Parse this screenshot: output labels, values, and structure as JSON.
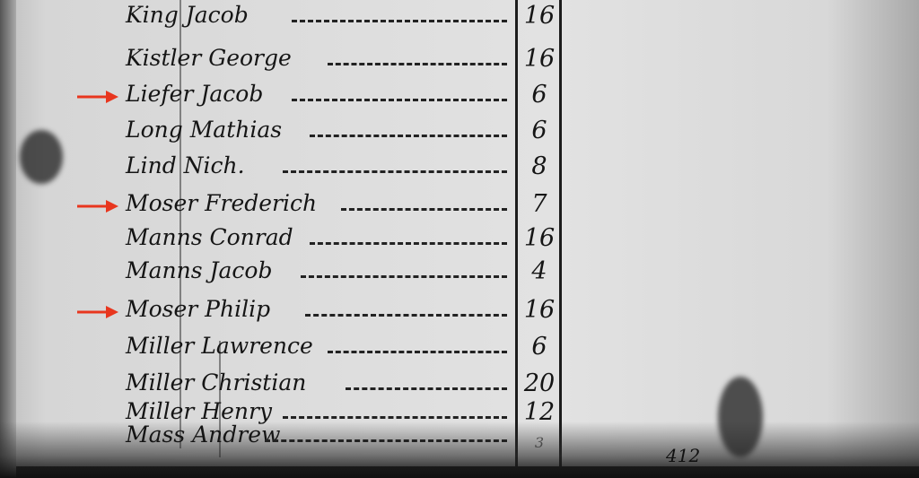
{
  "document": {
    "entries": [
      {
        "name": "King Jacob",
        "value": "16",
        "marked": false
      },
      {
        "name": "Kistler George",
        "value": "16",
        "marked": false
      },
      {
        "name": "Liefer Jacob",
        "value": "6",
        "marked": true
      },
      {
        "name": "Long Mathias",
        "value": "6",
        "marked": false
      },
      {
        "name": "Lind Nich.",
        "value": "8",
        "marked": false
      },
      {
        "name": "Moser Frederich",
        "value": "7",
        "marked": true
      },
      {
        "name": "Manns Conrad",
        "value": "16",
        "marked": false
      },
      {
        "name": "Manns Jacob",
        "value": "4",
        "marked": false
      },
      {
        "name": "Moser Philip",
        "value": "16",
        "marked": true
      },
      {
        "name": "Miller Lawrence",
        "value": "6",
        "marked": false
      },
      {
        "name": "Miller Christian",
        "value": "20",
        "marked": false
      },
      {
        "name": "Miller Henry",
        "value": "12",
        "marked": false
      },
      {
        "name": "Mass Andrew",
        "value": "3",
        "marked": false
      }
    ],
    "page_number": "412",
    "arrow_color": "#e8361e",
    "arrow_icon": "arrow-right-icon"
  }
}
